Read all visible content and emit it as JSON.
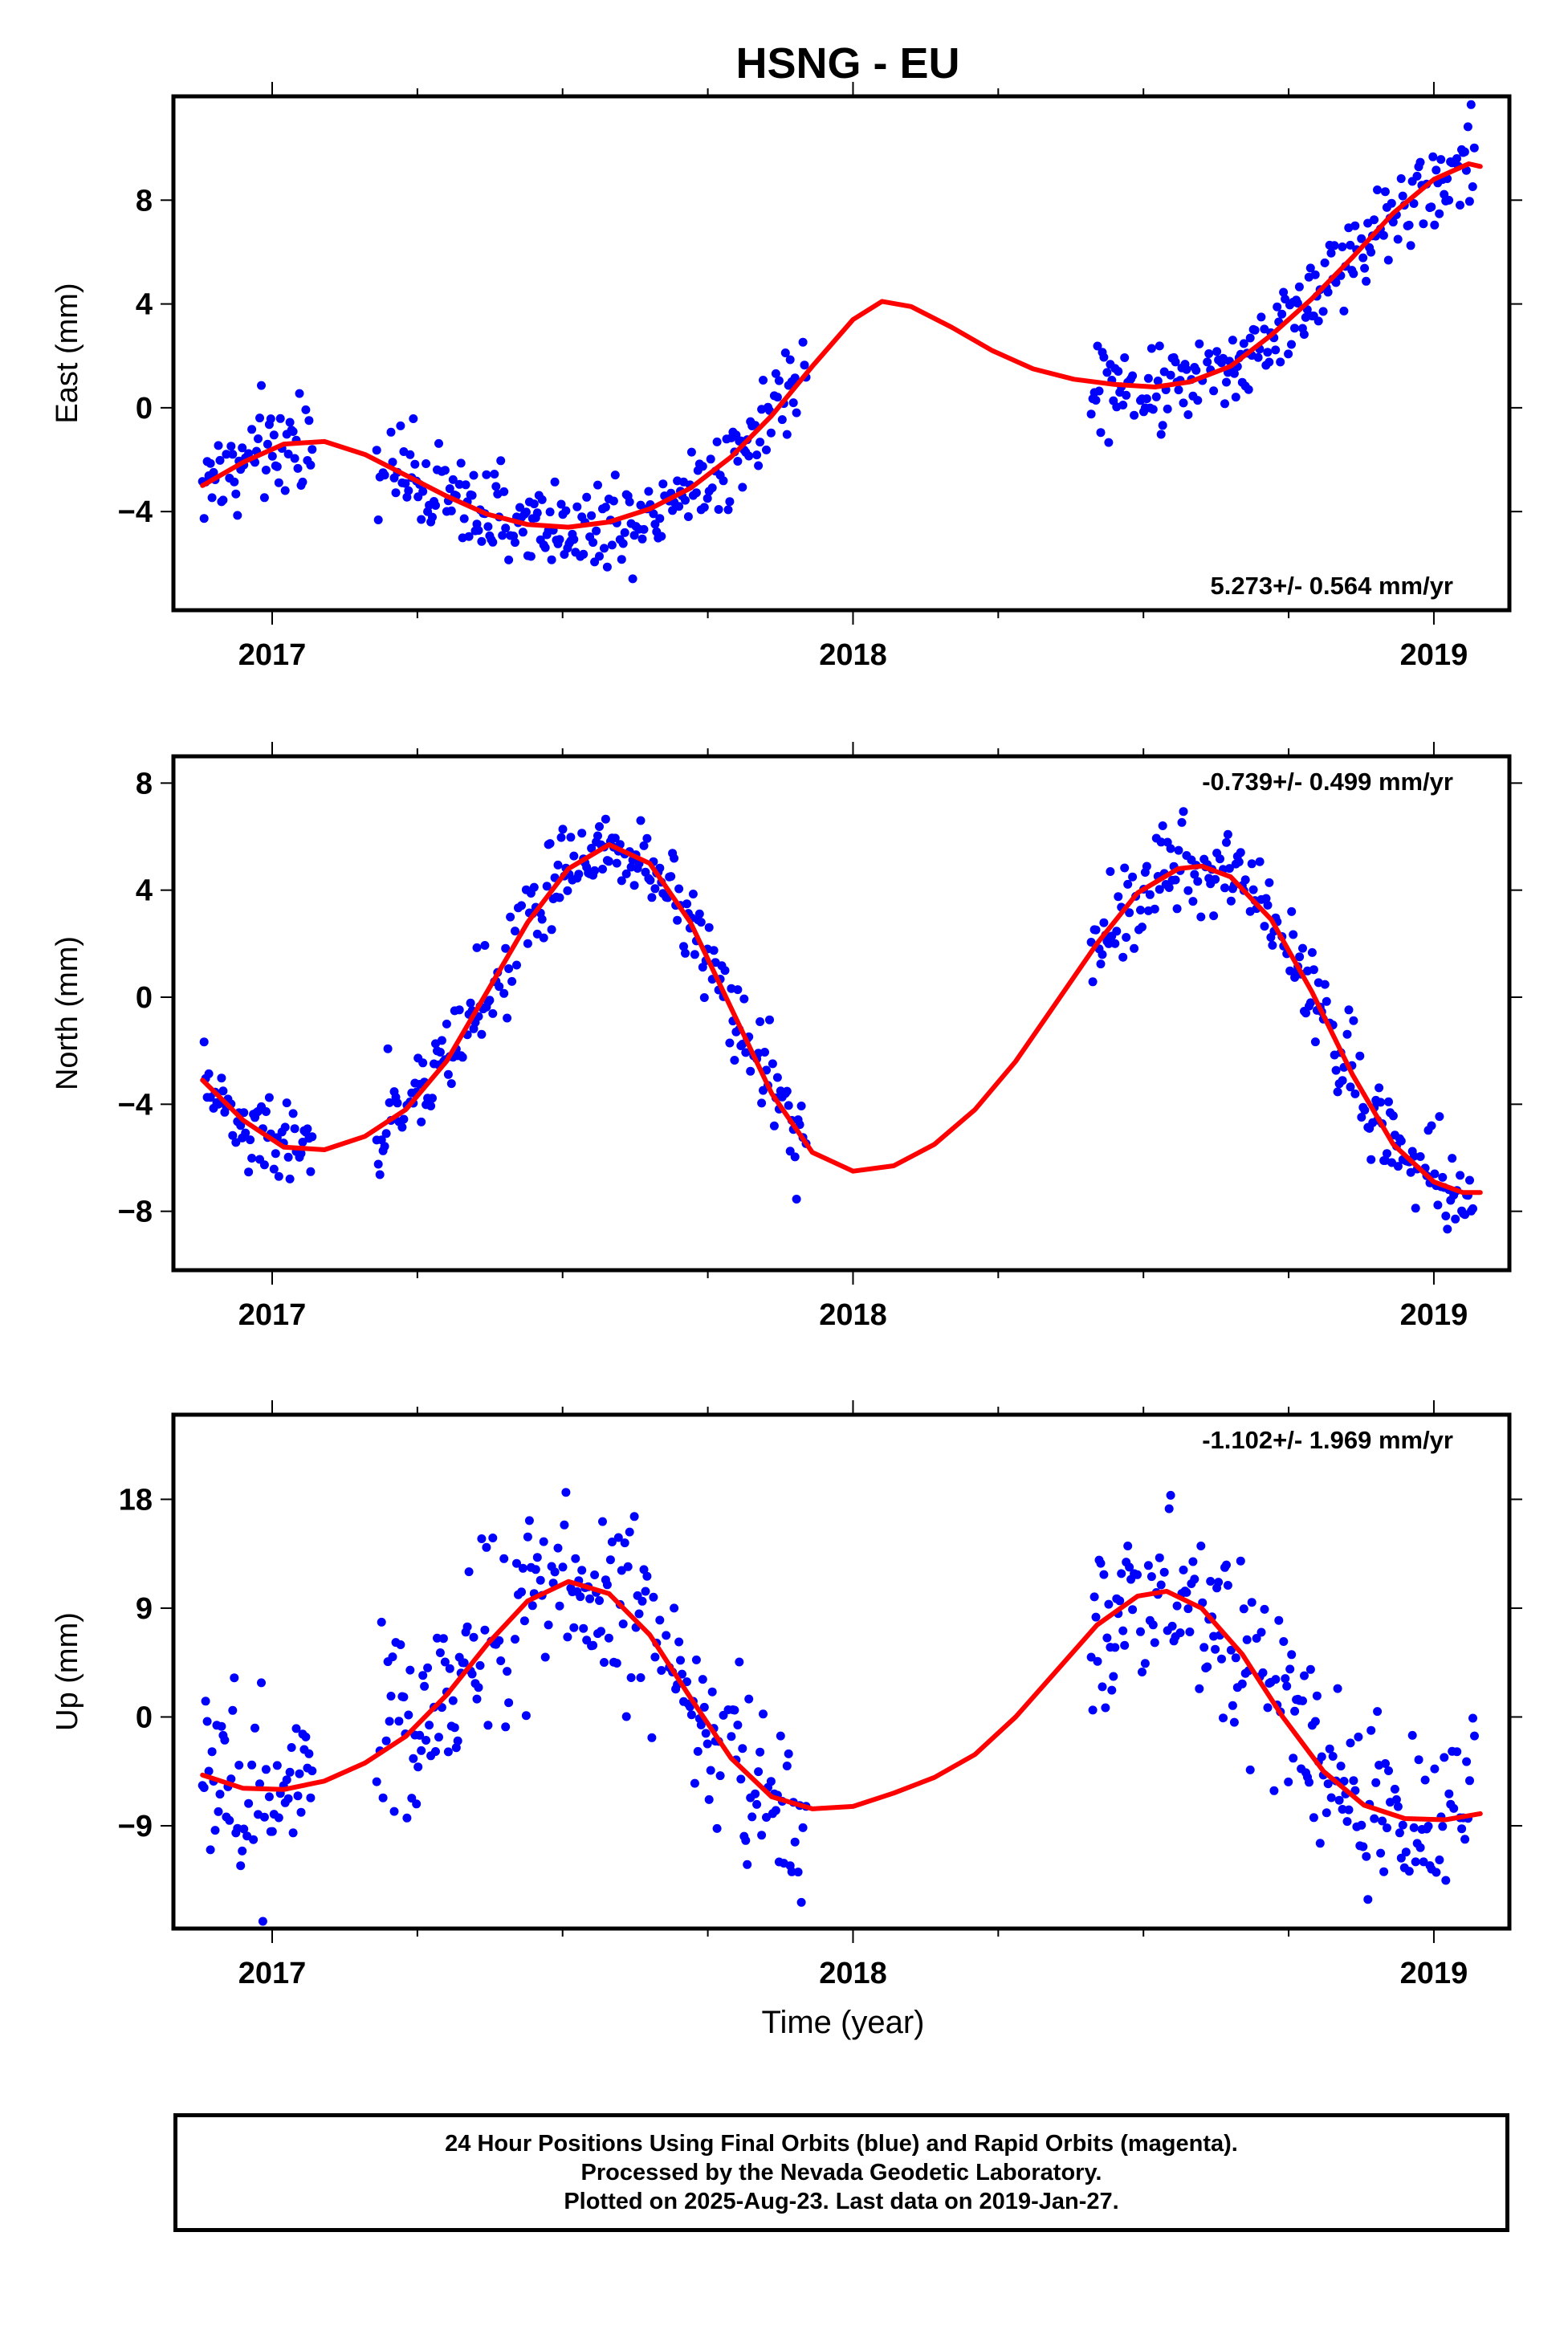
{
  "figure": {
    "title": "HSNG - EU",
    "xlabel": "Time (year)"
  },
  "colors": {
    "points": "#0000ff",
    "fit": "#ff0000",
    "frame": "#000000"
  },
  "caption": {
    "line1": "24 Hour Positions Using Final Orbits (blue) and Rapid Orbits (magenta).",
    "line2": "Processed by the Nevada Geodetic Laboratory.",
    "line3": "Plotted on 2025-Aug-23. Last data on 2019-Jan-27."
  },
  "chart_data": [
    {
      "type": "scatter",
      "component": "east",
      "ylabel": "East (mm)",
      "rate_label": "5.273+/- 0.564 mm/yr",
      "xlim": [
        2016.83,
        2019.13
      ],
      "ylim": [
        -7.8,
        12.0
      ],
      "yticks": [
        -4,
        0,
        4,
        8
      ],
      "xticks": [
        2017,
        2018,
        2019
      ],
      "grid": false,
      "data_segments": [
        [
          2016.88,
          2017.07
        ],
        [
          2017.18,
          2017.92
        ],
        [
          2018.41,
          2018.7
        ],
        [
          2018.7,
          2019.07
        ]
      ],
      "fit_points": [
        {
          "x": 2016.88,
          "y": -3.0
        },
        {
          "x": 2016.95,
          "y": -2.1
        },
        {
          "x": 2017.02,
          "y": -1.4
        },
        {
          "x": 2017.09,
          "y": -1.3
        },
        {
          "x": 2017.16,
          "y": -1.8
        },
        {
          "x": 2017.23,
          "y": -2.6
        },
        {
          "x": 2017.3,
          "y": -3.4
        },
        {
          "x": 2017.37,
          "y": -4.1
        },
        {
          "x": 2017.44,
          "y": -4.5
        },
        {
          "x": 2017.51,
          "y": -4.6
        },
        {
          "x": 2017.58,
          "y": -4.4
        },
        {
          "x": 2017.65,
          "y": -3.9
        },
        {
          "x": 2017.72,
          "y": -3.1
        },
        {
          "x": 2017.79,
          "y": -1.9
        },
        {
          "x": 2017.86,
          "y": -0.3
        },
        {
          "x": 2017.93,
          "y": 1.6
        },
        {
          "x": 2018.0,
          "y": 3.4
        },
        {
          "x": 2018.05,
          "y": 4.1
        },
        {
          "x": 2018.1,
          "y": 3.9
        },
        {
          "x": 2018.17,
          "y": 3.1
        },
        {
          "x": 2018.24,
          "y": 2.2
        },
        {
          "x": 2018.31,
          "y": 1.5
        },
        {
          "x": 2018.38,
          "y": 1.1
        },
        {
          "x": 2018.45,
          "y": 0.9
        },
        {
          "x": 2018.52,
          "y": 0.8
        },
        {
          "x": 2018.58,
          "y": 1.0
        },
        {
          "x": 2018.65,
          "y": 1.6
        },
        {
          "x": 2018.72,
          "y": 2.8
        },
        {
          "x": 2018.79,
          "y": 4.2
        },
        {
          "x": 2018.86,
          "y": 5.8
        },
        {
          "x": 2018.93,
          "y": 7.5
        },
        {
          "x": 2019.0,
          "y": 8.8
        },
        {
          "x": 2019.06,
          "y": 9.4
        },
        {
          "x": 2019.08,
          "y": 9.3
        }
      ],
      "scatter_spread": 0.9
    },
    {
      "type": "scatter",
      "component": "north",
      "ylabel": "North (mm)",
      "rate_label": "-0.739+/- 0.499 mm/yr",
      "xlim": [
        2016.83,
        2019.13
      ],
      "ylim": [
        -10.2,
        9.0
      ],
      "yticks": [
        -8,
        -4,
        0,
        4,
        8
      ],
      "xticks": [
        2017,
        2018,
        2019
      ],
      "grid": false,
      "data_segments": [
        [
          2016.88,
          2017.07
        ],
        [
          2017.18,
          2017.92
        ],
        [
          2018.41,
          2019.07
        ]
      ],
      "fit_points": [
        {
          "x": 2016.88,
          "y": -3.1
        },
        {
          "x": 2016.95,
          "y": -4.6
        },
        {
          "x": 2017.02,
          "y": -5.6
        },
        {
          "x": 2017.09,
          "y": -5.7
        },
        {
          "x": 2017.16,
          "y": -5.2
        },
        {
          "x": 2017.23,
          "y": -4.2
        },
        {
          "x": 2017.3,
          "y": -2.4
        },
        {
          "x": 2017.37,
          "y": 0.2
        },
        {
          "x": 2017.44,
          "y": 2.8
        },
        {
          "x": 2017.51,
          "y": 4.8
        },
        {
          "x": 2017.58,
          "y": 5.7
        },
        {
          "x": 2017.65,
          "y": 5.0
        },
        {
          "x": 2017.72,
          "y": 2.8
        },
        {
          "x": 2017.79,
          "y": -0.4
        },
        {
          "x": 2017.86,
          "y": -3.6
        },
        {
          "x": 2017.93,
          "y": -5.8
        },
        {
          "x": 2018.0,
          "y": -6.5
        },
        {
          "x": 2018.07,
          "y": -6.3
        },
        {
          "x": 2018.14,
          "y": -5.5
        },
        {
          "x": 2018.21,
          "y": -4.2
        },
        {
          "x": 2018.28,
          "y": -2.4
        },
        {
          "x": 2018.35,
          "y": -0.2
        },
        {
          "x": 2018.42,
          "y": 2.0
        },
        {
          "x": 2018.49,
          "y": 3.9
        },
        {
          "x": 2018.56,
          "y": 4.8
        },
        {
          "x": 2018.6,
          "y": 4.9
        },
        {
          "x": 2018.65,
          "y": 4.5
        },
        {
          "x": 2018.72,
          "y": 2.9
        },
        {
          "x": 2018.79,
          "y": 0.2
        },
        {
          "x": 2018.86,
          "y": -2.9
        },
        {
          "x": 2018.93,
          "y": -5.5
        },
        {
          "x": 2019.0,
          "y": -6.9
        },
        {
          "x": 2019.05,
          "y": -7.3
        },
        {
          "x": 2019.08,
          "y": -7.3
        }
      ],
      "scatter_spread": 0.9
    },
    {
      "type": "scatter",
      "component": "up",
      "ylabel": "Up (mm)",
      "rate_label": "-1.102+/- 1.969 mm/yr",
      "xlim": [
        2016.83,
        2019.13
      ],
      "ylim": [
        -17.5,
        25.0
      ],
      "yticks": [
        -9,
        0,
        9,
        18
      ],
      "xticks": [
        2017,
        2018,
        2019
      ],
      "grid": false,
      "data_segments": [
        [
          2016.88,
          2017.07
        ],
        [
          2017.18,
          2017.92
        ],
        [
          2018.41,
          2019.07
        ]
      ],
      "fit_points": [
        {
          "x": 2016.88,
          "y": -4.8
        },
        {
          "x": 2016.95,
          "y": -5.9
        },
        {
          "x": 2017.02,
          "y": -6.0
        },
        {
          "x": 2017.09,
          "y": -5.3
        },
        {
          "x": 2017.16,
          "y": -3.8
        },
        {
          "x": 2017.23,
          "y": -1.6
        },
        {
          "x": 2017.3,
          "y": 1.8
        },
        {
          "x": 2017.37,
          "y": 6.0
        },
        {
          "x": 2017.44,
          "y": 9.6
        },
        {
          "x": 2017.51,
          "y": 11.2
        },
        {
          "x": 2017.58,
          "y": 10.2
        },
        {
          "x": 2017.65,
          "y": 6.8
        },
        {
          "x": 2017.72,
          "y": 1.6
        },
        {
          "x": 2017.79,
          "y": -3.4
        },
        {
          "x": 2017.86,
          "y": -6.6
        },
        {
          "x": 2017.93,
          "y": -7.6
        },
        {
          "x": 2018.0,
          "y": -7.4
        },
        {
          "x": 2018.07,
          "y": -6.3
        },
        {
          "x": 2018.14,
          "y": -5.0
        },
        {
          "x": 2018.21,
          "y": -3.1
        },
        {
          "x": 2018.28,
          "y": 0.0
        },
        {
          "x": 2018.35,
          "y": 3.8
        },
        {
          "x": 2018.42,
          "y": 7.6
        },
        {
          "x": 2018.49,
          "y": 10.0
        },
        {
          "x": 2018.54,
          "y": 10.4
        },
        {
          "x": 2018.6,
          "y": 9.0
        },
        {
          "x": 2018.67,
          "y": 5.2
        },
        {
          "x": 2018.74,
          "y": 0.0
        },
        {
          "x": 2018.81,
          "y": -4.5
        },
        {
          "x": 2018.88,
          "y": -7.3
        },
        {
          "x": 2018.95,
          "y": -8.4
        },
        {
          "x": 2019.02,
          "y": -8.5
        },
        {
          "x": 2019.08,
          "y": -8.0
        }
      ],
      "scatter_spread": 3.8
    }
  ]
}
